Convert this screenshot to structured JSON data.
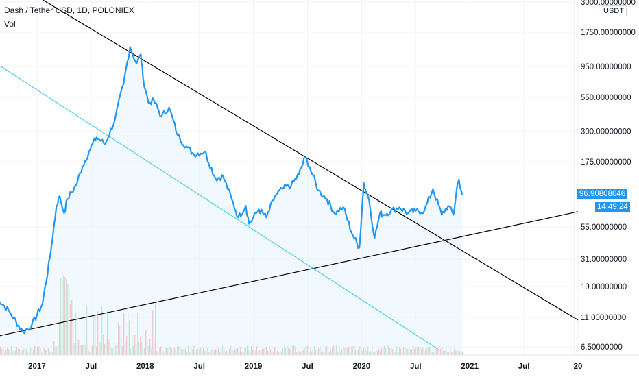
{
  "legend": {
    "title": "Dash / Tether USD, 1D, POLONIEX",
    "volume": "Vol"
  },
  "currency": "USDT",
  "last_price": "96.90808046",
  "countdown": "14:49:24",
  "colors": {
    "price": "#2196f3",
    "grid": "#f0f3fa",
    "trend": "#000000",
    "trend_cyan": "#4dd0e1",
    "fill": "#e3f2fd"
  },
  "chart_data": {
    "type": "line",
    "title": "Dash / Tether USD, 1D, POLONIEX",
    "xlabel": "",
    "ylabel": "",
    "yscale": "log",
    "x_ticks": [
      {
        "label": "2017",
        "t": 2017.0
      },
      {
        "label": "Jul",
        "t": 2017.5
      },
      {
        "label": "2018",
        "t": 2018.0
      },
      {
        "label": "Jul",
        "t": 2018.5
      },
      {
        "label": "2019",
        "t": 2019.0
      },
      {
        "label": "Jul",
        "t": 2019.5
      },
      {
        "label": "2020",
        "t": 2020.0
      },
      {
        "label": "Jul",
        "t": 2020.5
      },
      {
        "label": "2021",
        "t": 2021.0
      },
      {
        "label": "Jul",
        "t": 2021.5
      },
      {
        "label": "20",
        "t": 2022.0
      }
    ],
    "y_ticks": [
      {
        "label": "3000.00000000",
        "v": 3000
      },
      {
        "label": "1750.00000000",
        "v": 1750
      },
      {
        "label": "950.00000000",
        "v": 950
      },
      {
        "label": "550.00000000",
        "v": 550
      },
      {
        "label": "300.00000000",
        "v": 300
      },
      {
        "label": "175.00000000",
        "v": 175
      },
      {
        "label": "55.00000000",
        "v": 55
      },
      {
        "label": "31.00000000",
        "v": 31
      },
      {
        "label": "19.00000000",
        "v": 19
      },
      {
        "label": "11.00000000",
        "v": 11
      },
      {
        "label": "6.50000000",
        "v": 6.5
      }
    ],
    "series": [
      {
        "x": [
          2016.62,
          2016.75,
          2016.87,
          2016.95,
          2017.05,
          2017.12,
          2017.18,
          2017.21,
          2017.25,
          2017.28,
          2017.36,
          2017.42,
          2017.48,
          2017.55,
          2017.63,
          2017.72,
          2017.8,
          2017.86,
          2017.92,
          2017.96,
          2017.98,
          2018.03,
          2018.08,
          2018.15,
          2018.22,
          2018.3,
          2018.38,
          2018.45,
          2018.55,
          2018.65,
          2018.72,
          2018.8,
          2018.86,
          2018.93,
          2018.96,
          2019.05,
          2019.12,
          2019.2,
          2019.28,
          2019.35,
          2019.42,
          2019.48,
          2019.52,
          2019.6,
          2019.68,
          2019.75,
          2019.83,
          2019.92,
          2019.98,
          2020.02,
          2020.07,
          2020.12,
          2020.17,
          2020.2,
          2020.27,
          2020.35,
          2020.43,
          2020.5,
          2020.58,
          2020.66,
          2020.74,
          2020.8,
          2020.85,
          2020.88,
          2020.9,
          2020.93
        ],
        "y": [
          16,
          12,
          8.5,
          9.5,
          14,
          32,
          80,
          95,
          70,
          90,
          115,
          160,
          210,
          270,
          240,
          370,
          700,
          1350,
          1000,
          1180,
          780,
          500,
          520,
          390,
          460,
          280,
          230,
          200,
          210,
          130,
          135,
          90,
          65,
          80,
          58,
          75,
          65,
          95,
          110,
          115,
          140,
          190,
          160,
          105,
          90,
          70,
          78,
          47,
          38,
          120,
          88,
          45,
          70,
          68,
          73,
          78,
          70,
          73,
          73,
          108,
          68,
          80,
          68,
          110,
          128,
          96.9
        ]
      }
    ],
    "trendlines": [
      {
        "from": [
          2016.95,
          3500
        ],
        "to": [
          2022.0,
          10.5
        ]
      },
      {
        "from": [
          2016.55,
          7.6
        ],
        "to": [
          2022.0,
          72
        ]
      },
      {
        "from": [
          2016.55,
          1100
        ],
        "to": [
          2020.7,
          6.3
        ]
      }
    ]
  }
}
